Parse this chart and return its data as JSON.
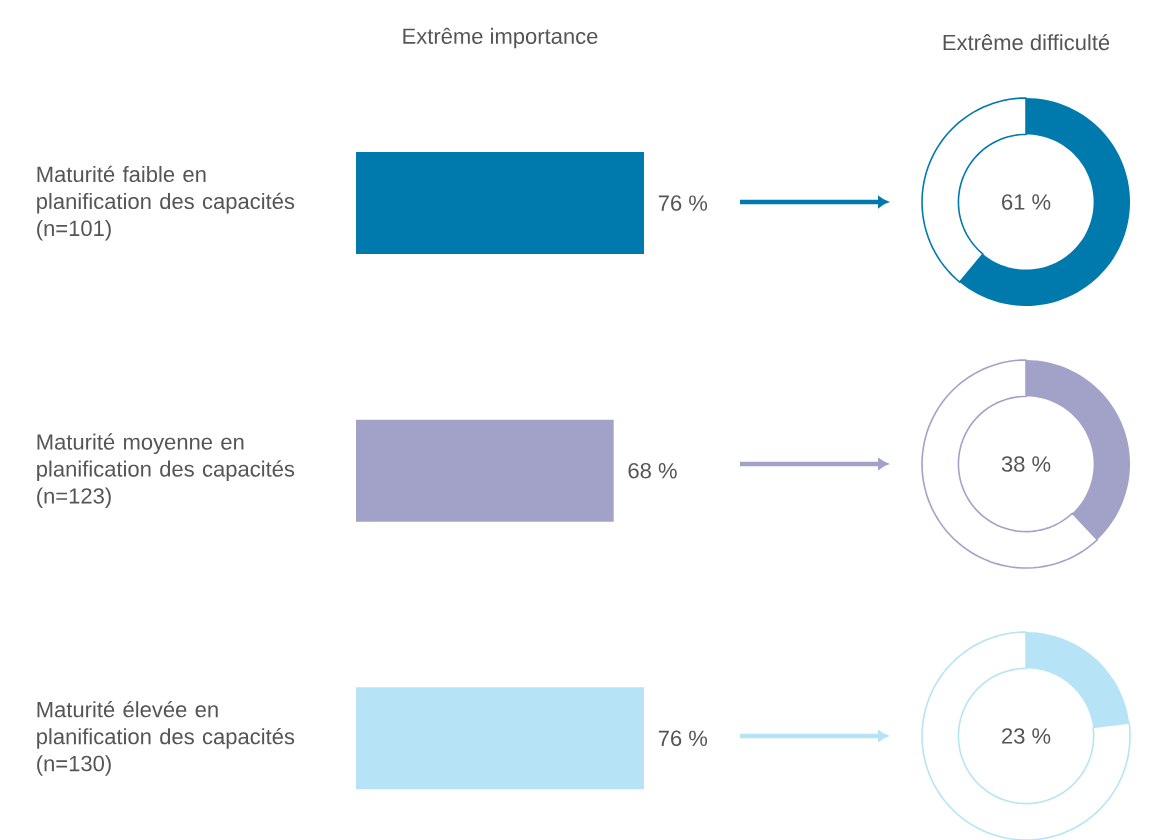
{
  "chart_data": [
    {
      "type": "bar",
      "orientation": "horizontal",
      "title": "Extrême importance",
      "categories": [
        "Maturité faible en planification des capacités (n=101)",
        "Maturité moyenne en planification des capacités (n=123)",
        "Maturité élevée en planification des capacités (n=130)"
      ],
      "values": [
        76,
        68,
        76
      ],
      "colors": [
        "#0079ad",
        "#a2a2c9",
        "#b7e3f6"
      ],
      "value_labels": [
        "76 %",
        "68 %",
        "76 %"
      ],
      "tick_labels": "y"
    },
    {
      "type": "donut",
      "title": "Extrême difficulté",
      "categories": [
        null,
        null
      ],
      "values": [
        61,
        39
      ],
      "colors": [
        "#0079ad",
        "#ffffff"
      ],
      "value_labels": [
        "61 %",
        null
      ]
    },
    {
      "type": "donut",
      "categories": [
        null,
        null
      ],
      "values": [
        38,
        62
      ],
      "colors": [
        "#a2a2c9",
        "#ffffff"
      ],
      "value_labels": [
        "38 %",
        null
      ]
    },
    {
      "type": "donut",
      "categories": [
        null,
        null
      ],
      "values": [
        23,
        77
      ],
      "colors": [
        "#b7e3f6",
        "#ffffff"
      ],
      "value_labels": [
        "23 %",
        null
      ]
    }
  ]
}
